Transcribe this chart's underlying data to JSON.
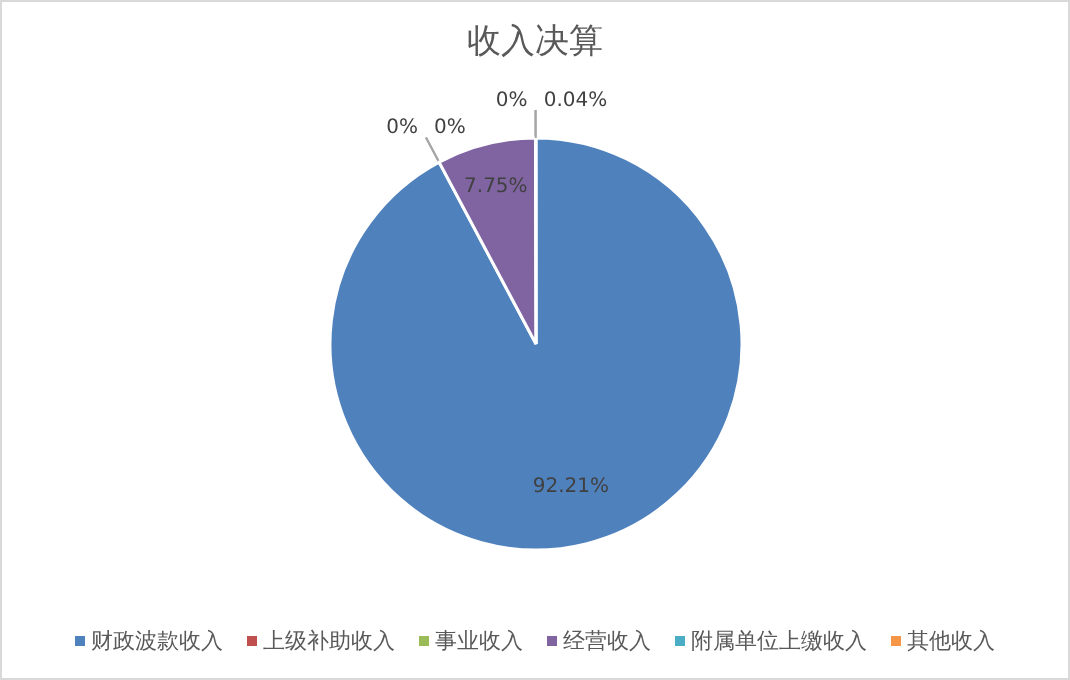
{
  "chart_data": {
    "type": "pie",
    "title": "收入决算",
    "categories": [
      "财政波款收入",
      "上级补助收入",
      "事业收入",
      "经营收入",
      "附属单位上缴收入",
      "其他收入"
    ],
    "values": [
      92.21,
      0,
      0,
      7.75,
      0,
      0.04
    ],
    "colors": [
      "#4f81bd",
      "#c0504d",
      "#9bbb59",
      "#8064a2",
      "#4bacc6",
      "#f79646"
    ],
    "value_labels": [
      "92.21%",
      "0%",
      "0%",
      "7.75%",
      "0%",
      "0.04%"
    ],
    "legend": "bottom"
  }
}
